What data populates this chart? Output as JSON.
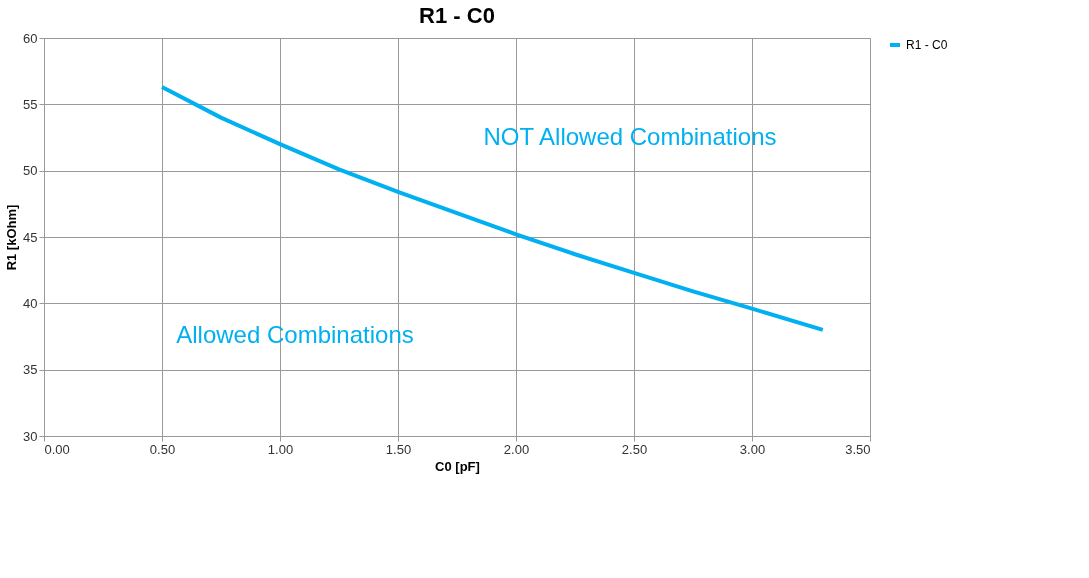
{
  "chart_data": {
    "type": "line",
    "title": "R1 - C0",
    "xlabel": "C0 [pF]",
    "ylabel": "R1 [kOhm]",
    "x": [
      0.5,
      0.75,
      1.0,
      1.25,
      1.5,
      1.75,
      2.0,
      2.25,
      2.5,
      2.75,
      3.0,
      3.3
    ],
    "series": [
      {
        "name": "R1 - C0",
        "color": "#00b0f0",
        "values": [
          56.3,
          54.0,
          52.0,
          50.1,
          48.4,
          46.8,
          45.2,
          43.7,
          42.3,
          40.9,
          39.6,
          38.0
        ]
      }
    ],
    "xlim": [
      0,
      3.5
    ],
    "xticks": [
      {
        "value": 0,
        "label": "0.00"
      },
      {
        "value": 0.5,
        "label": "0.50"
      },
      {
        "value": 1,
        "label": "1.00"
      },
      {
        "value": 1.5,
        "label": "1.50"
      },
      {
        "value": 2,
        "label": "2.00"
      },
      {
        "value": 2.5,
        "label": "2.50"
      },
      {
        "value": 3,
        "label": "3.00"
      },
      {
        "value": 3.5,
        "label": "3.50"
      }
    ],
    "ylim": [
      30,
      60
    ],
    "yticks": [
      30,
      35,
      40,
      45,
      50,
      55,
      60
    ],
    "annotations": [
      "NOT Allowed Combinations",
      "Allowed Combinations"
    ],
    "grid": true,
    "legend": "right",
    "marker": "none",
    "line_style": "solid"
  }
}
